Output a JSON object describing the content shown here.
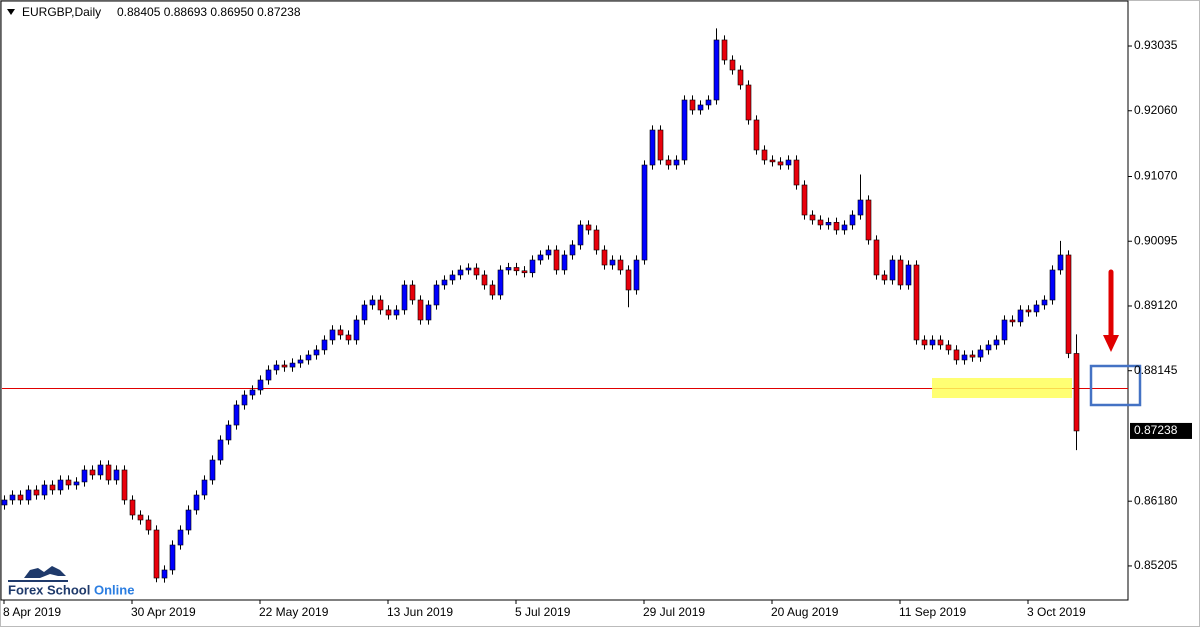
{
  "chart_data": {
    "type": "candlestick",
    "title": "EURGBP,Daily",
    "ohlc_label": "0.88405 0.88693 0.86950 0.87238",
    "logo": [
      "Forex School",
      "Online"
    ],
    "up_color": "#0000ff",
    "down_color": "#e8000b",
    "ylim": [
      0.84692,
      0.93728
    ],
    "yticks": [
      0.93035,
      {
        "value": 0.9206,
        "label": "0.92060"
      },
      {
        "value": 0.9107,
        "label": "0.91070"
      },
      0.90095,
      {
        "value": 0.8912,
        "label": "0.89120"
      },
      0.88145,
      {
        "value": 0.8618,
        "label": "0.86180"
      },
      0.85205
    ],
    "categories": [
      "8 Apr 2019",
      null,
      null,
      null,
      null,
      null,
      null,
      null,
      null,
      null,
      null,
      null,
      null,
      null,
      null,
      null,
      "30 Apr 2019",
      null,
      null,
      null,
      null,
      null,
      null,
      null,
      null,
      null,
      null,
      null,
      null,
      null,
      null,
      null,
      "22 May 2019",
      null,
      null,
      null,
      null,
      null,
      null,
      null,
      null,
      null,
      null,
      null,
      null,
      null,
      null,
      null,
      "13 Jun 2019",
      null,
      null,
      null,
      null,
      null,
      null,
      null,
      null,
      null,
      null,
      null,
      null,
      null,
      null,
      null,
      "5 Jul 2019",
      null,
      null,
      null,
      null,
      null,
      null,
      null,
      null,
      null,
      null,
      null,
      null,
      null,
      null,
      null,
      "29 Jul 2019",
      null,
      null,
      null,
      null,
      null,
      null,
      null,
      null,
      null,
      null,
      null,
      null,
      null,
      null,
      null,
      "20 Aug 2019",
      null,
      null,
      null,
      null,
      null,
      null,
      null,
      null,
      null,
      null,
      null,
      null,
      null,
      null,
      null,
      "11 Sep 2019",
      null,
      null,
      null,
      null,
      null,
      null,
      null,
      null,
      null,
      null,
      null,
      null,
      null,
      null,
      null,
      "3 Oct 2019",
      null,
      null,
      null,
      null,
      null,
      null
    ],
    "open": [
      0.86123,
      0.86198,
      0.86273,
      0.86198,
      0.86349,
      0.86273,
      0.86424,
      0.86349,
      0.86499,
      0.86424,
      0.8647,
      0.8665,
      0.86575,
      0.86725,
      0.86499,
      0.8665,
      0.86198,
      0.85972,
      0.85897,
      0.85746,
      0.85023,
      0.85144,
      0.8552,
      0.85746,
      0.86047,
      0.86273,
      0.86499,
      0.868,
      0.87102,
      0.87327,
      0.87629,
      0.87779,
      0.87855,
      0.88005,
      0.88156,
      0.88231,
      0.882,
      0.8826,
      0.88307,
      0.88382,
      0.88458,
      0.88608,
      0.88759,
      0.88683,
      0.88608,
      0.88909,
      0.89135,
      0.8921,
      0.8906,
      0.88984,
      0.8906,
      0.89436,
      0.8921,
      0.88909,
      0.89135,
      0.89436,
      0.89511,
      0.89587,
      0.89662,
      0.89692,
      0.89587,
      0.89436,
      0.89285,
      0.89662,
      0.897,
      0.8965,
      0.8962,
      0.89812,
      0.89888,
      0.89963,
      0.89662,
      0.89888,
      0.90039,
      0.9034,
      0.90264,
      0.89963,
      0.89737,
      0.89812,
      0.89662,
      0.89361,
      0.89812,
      0.91243,
      0.9177,
      0.91318,
      0.91243,
      0.91318,
      0.92222,
      0.92071,
      0.92147,
      0.92222,
      0.93126,
      0.92824,
      0.92674,
      0.92448,
      0.91921,
      0.91469,
      0.91318,
      0.9129,
      0.91243,
      0.91318,
      0.90942,
      0.9049,
      0.90415,
      0.9034,
      0.9038,
      0.90264,
      0.9034,
      0.9049,
      0.90716,
      0.90114,
      0.89587,
      0.89511,
      0.89812,
      0.89436,
      0.89737,
      0.88608,
      0.88533,
      0.88608,
      0.88533,
      0.88458,
      0.88307,
      0.88382,
      0.8835,
      0.88458,
      0.88533,
      0.88608,
      0.88909,
      0.8888,
      0.8906,
      0.8903,
      0.89135,
      0.8921,
      0.89662,
      0.89888,
      0.88405
    ],
    "high": [
      0.86268,
      0.86343,
      0.86343,
      0.86419,
      0.86419,
      0.86494,
      0.86494,
      0.86569,
      0.86569,
      0.8654,
      0.8672,
      0.8672,
      0.86795,
      0.86795,
      0.8672,
      0.8672,
      0.86268,
      0.86042,
      0.85967,
      0.85816,
      0.85214,
      0.8559,
      0.85816,
      0.86117,
      0.86343,
      0.86569,
      0.8687,
      0.87172,
      0.87397,
      0.87699,
      0.87849,
      0.87925,
      0.88075,
      0.88226,
      0.88301,
      0.88301,
      0.8833,
      0.88377,
      0.88452,
      0.88528,
      0.88678,
      0.88829,
      0.88829,
      0.88753,
      0.88979,
      0.89205,
      0.8928,
      0.8928,
      0.8913,
      0.8913,
      0.89506,
      0.89506,
      0.8928,
      0.89205,
      0.89506,
      0.89581,
      0.89657,
      0.89732,
      0.89762,
      0.89762,
      0.89657,
      0.89506,
      0.89732,
      0.8977,
      0.8977,
      0.8972,
      0.89882,
      0.89958,
      0.90033,
      0.90033,
      0.89958,
      0.90109,
      0.9041,
      0.9041,
      0.90334,
      0.90033,
      0.89882,
      0.89882,
      0.89732,
      0.89882,
      0.91313,
      0.9184,
      0.9184,
      0.91388,
      0.91388,
      0.92292,
      0.92292,
      0.92217,
      0.92292,
      0.933,
      0.93196,
      0.92894,
      0.92744,
      0.92518,
      0.91991,
      0.91539,
      0.91388,
      0.9136,
      0.91388,
      0.91388,
      0.91012,
      0.9056,
      0.90485,
      0.9045,
      0.9045,
      0.9041,
      0.9056,
      0.911,
      0.90786,
      0.90184,
      0.89657,
      0.89882,
      0.89882,
      0.89807,
      0.89807,
      0.88678,
      0.88678,
      0.88678,
      0.88603,
      0.88528,
      0.88452,
      0.88452,
      0.88528,
      0.88603,
      0.88678,
      0.88979,
      0.88979,
      0.8913,
      0.8913,
      0.89205,
      0.8928,
      0.89732,
      0.901,
      0.89958,
      0.88693
    ],
    "low": [
      0.86053,
      0.86128,
      0.86128,
      0.86128,
      0.86203,
      0.86203,
      0.86279,
      0.86279,
      0.86354,
      0.86354,
      0.864,
      0.86505,
      0.86505,
      0.86429,
      0.86429,
      0.86128,
      0.85902,
      0.85827,
      0.85676,
      0.8496,
      0.84953,
      0.85074,
      0.8545,
      0.85676,
      0.85977,
      0.86203,
      0.86429,
      0.8673,
      0.87032,
      0.87257,
      0.87559,
      0.87709,
      0.87785,
      0.87935,
      0.88086,
      0.8813,
      0.8813,
      0.8819,
      0.88237,
      0.88312,
      0.88388,
      0.88538,
      0.88613,
      0.88538,
      0.88538,
      0.88839,
      0.89065,
      0.8899,
      0.88914,
      0.88914,
      0.8899,
      0.8914,
      0.88839,
      0.88839,
      0.89065,
      0.89366,
      0.89441,
      0.89517,
      0.89592,
      0.89517,
      0.89366,
      0.89215,
      0.89215,
      0.89592,
      0.8958,
      0.8955,
      0.8955,
      0.89742,
      0.89818,
      0.89592,
      0.89592,
      0.89818,
      0.89969,
      0.90194,
      0.89893,
      0.89667,
      0.89667,
      0.89592,
      0.891,
      0.89291,
      0.89742,
      0.91173,
      0.91248,
      0.91173,
      0.91173,
      0.91248,
      0.92001,
      0.92001,
      0.92077,
      0.92152,
      0.92754,
      0.92604,
      0.92378,
      0.91851,
      0.91399,
      0.91248,
      0.9122,
      0.91173,
      0.91173,
      0.90872,
      0.9042,
      0.90345,
      0.9027,
      0.9027,
      0.90194,
      0.90194,
      0.9027,
      0.9042,
      0.90044,
      0.89517,
      0.89441,
      0.89441,
      0.89366,
      0.89366,
      0.88538,
      0.88463,
      0.88463,
      0.88463,
      0.88388,
      0.88237,
      0.88237,
      0.8828,
      0.8828,
      0.88388,
      0.88463,
      0.88538,
      0.8881,
      0.8881,
      0.8896,
      0.8896,
      0.89065,
      0.8914,
      0.89592,
      0.88335,
      0.8695
    ],
    "close": [
      0.86198,
      0.86273,
      0.86198,
      0.86349,
      0.86273,
      0.86424,
      0.86349,
      0.86499,
      0.86424,
      0.8647,
      0.8665,
      0.86575,
      0.86725,
      0.86499,
      0.8665,
      0.86198,
      0.85972,
      0.85897,
      0.85746,
      0.85023,
      0.85144,
      0.8552,
      0.85746,
      0.86047,
      0.86273,
      0.86499,
      0.868,
      0.87102,
      0.87327,
      0.87629,
      0.87779,
      0.87855,
      0.88005,
      0.88156,
      0.88231,
      0.882,
      0.8826,
      0.88307,
      0.88382,
      0.88458,
      0.88608,
      0.88759,
      0.88683,
      0.88608,
      0.88909,
      0.89135,
      0.8921,
      0.8906,
      0.88984,
      0.8906,
      0.89436,
      0.8921,
      0.88909,
      0.89135,
      0.89436,
      0.89511,
      0.89587,
      0.89662,
      0.89692,
      0.89587,
      0.89436,
      0.89285,
      0.89662,
      0.897,
      0.8965,
      0.8962,
      0.89812,
      0.89888,
      0.89963,
      0.89662,
      0.89888,
      0.90039,
      0.9034,
      0.90264,
      0.89963,
      0.89737,
      0.89812,
      0.89662,
      0.89361,
      0.89812,
      0.91243,
      0.9177,
      0.91318,
      0.91243,
      0.91318,
      0.92222,
      0.92071,
      0.92147,
      0.92222,
      0.93126,
      0.92824,
      0.92674,
      0.92448,
      0.91921,
      0.91469,
      0.91318,
      0.9129,
      0.91243,
      0.91318,
      0.90942,
      0.9049,
      0.90415,
      0.9034,
      0.9038,
      0.90264,
      0.9034,
      0.9049,
      0.90716,
      0.90114,
      0.89587,
      0.89511,
      0.89812,
      0.89436,
      0.89737,
      0.88608,
      0.88533,
      0.88608,
      0.88533,
      0.88458,
      0.88307,
      0.88382,
      0.8835,
      0.88458,
      0.88533,
      0.88608,
      0.88909,
      0.8888,
      0.8906,
      0.8903,
      0.89135,
      0.8921,
      0.89662,
      0.89888,
      0.88405,
      0.87238
    ]
  }
}
